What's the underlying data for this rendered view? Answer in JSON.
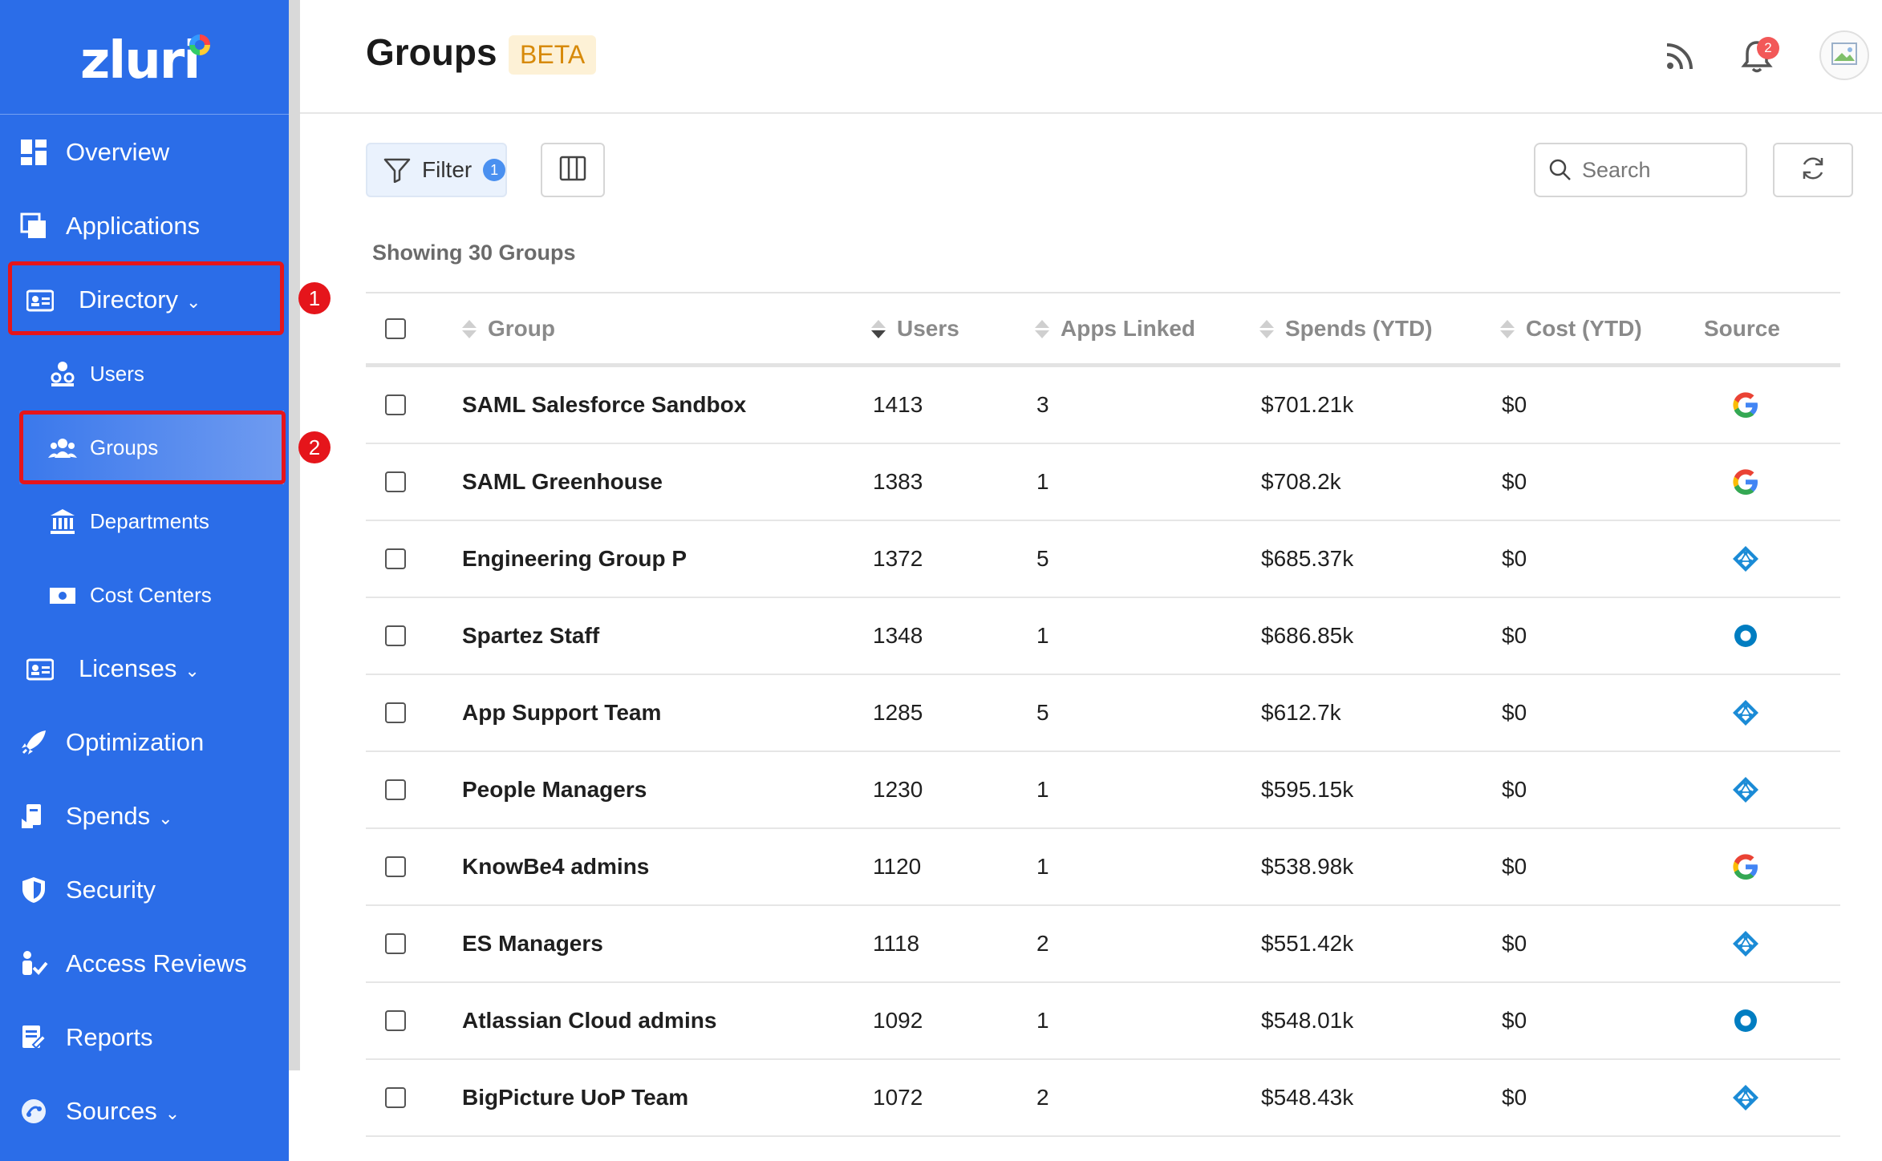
{
  "brand": {
    "logo_text": "zluri"
  },
  "sidebar": {
    "items": [
      {
        "label": "Overview"
      },
      {
        "label": "Applications"
      },
      {
        "label": "Directory"
      },
      {
        "label": "Licenses"
      },
      {
        "label": "Optimization"
      },
      {
        "label": "Spends"
      },
      {
        "label": "Security"
      },
      {
        "label": "Access Reviews"
      },
      {
        "label": "Reports"
      },
      {
        "label": "Sources"
      }
    ],
    "directory_sub": [
      {
        "label": "Users"
      },
      {
        "label": "Groups"
      },
      {
        "label": "Departments"
      },
      {
        "label": "Cost Centers"
      }
    ]
  },
  "annotations": {
    "step1": "1",
    "step2": "2"
  },
  "header": {
    "title": "Groups",
    "beta": "BETA",
    "notification_count": "2"
  },
  "toolbar": {
    "filter_label": "Filter",
    "filter_count": "1",
    "search_placeholder": "Search"
  },
  "summary": "Showing 30 Groups",
  "table": {
    "columns": [
      "Group",
      "Users",
      "Apps Linked",
      "Spends (YTD)",
      "Cost (YTD)",
      "Source"
    ],
    "rows": [
      {
        "group": "SAML Salesforce Sandbox",
        "users": "1413",
        "apps": "3",
        "spends": "$701.21k",
        "cost": "$0",
        "source": "google-icon"
      },
      {
        "group": "SAML Greenhouse",
        "users": "1383",
        "apps": "1",
        "spends": "$708.2k",
        "cost": "$0",
        "source": "google-icon"
      },
      {
        "group": "Engineering Group P",
        "users": "1372",
        "apps": "5",
        "spends": "$685.37k",
        "cost": "$0",
        "source": "azure-ad-icon"
      },
      {
        "group": "Spartez Staff",
        "users": "1348",
        "apps": "1",
        "spends": "$686.85k",
        "cost": "$0",
        "source": "okta-icon"
      },
      {
        "group": "App Support Team",
        "users": "1285",
        "apps": "5",
        "spends": "$612.7k",
        "cost": "$0",
        "source": "azure-ad-icon"
      },
      {
        "group": "People Managers",
        "users": "1230",
        "apps": "1",
        "spends": "$595.15k",
        "cost": "$0",
        "source": "azure-ad-icon"
      },
      {
        "group": "KnowBe4 admins",
        "users": "1120",
        "apps": "1",
        "spends": "$538.98k",
        "cost": "$0",
        "source": "google-icon"
      },
      {
        "group": "ES Managers",
        "users": "1118",
        "apps": "2",
        "spends": "$551.42k",
        "cost": "$0",
        "source": "azure-ad-icon"
      },
      {
        "group": "Atlassian Cloud admins",
        "users": "1092",
        "apps": "1",
        "spends": "$548.01k",
        "cost": "$0",
        "source": "okta-icon"
      },
      {
        "group": "BigPicture UoP Team",
        "users": "1072",
        "apps": "2",
        "spends": "$548.43k",
        "cost": "$0",
        "source": "azure-ad-icon"
      }
    ]
  },
  "colors": {
    "sidebar": "#2b6de8",
    "highlight": "#e5151b",
    "beta_bg": "#fdf1d6",
    "beta_text": "#d78a0a"
  }
}
